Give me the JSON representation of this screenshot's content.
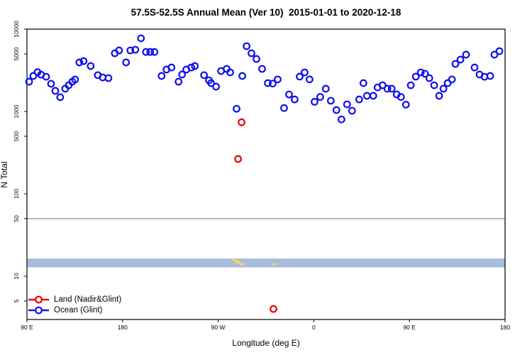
{
  "title": "57.5S-52.5S Annual Mean (Ver 10)  2015-01-01 to 2020-12-18",
  "axes": {
    "x_label": "Longitude (deg E)",
    "y_label": "N Total",
    "x_ticks": [
      {
        "pos": 0,
        "label": "90 E"
      },
      {
        "pos": 90,
        "label": "180"
      },
      {
        "pos": 180,
        "label": "90 W"
      },
      {
        "pos": 270,
        "label": "0"
      },
      {
        "pos": 360,
        "label": "90 E"
      },
      {
        "pos": 450,
        "label": "180"
      }
    ],
    "y_ticks": [
      {
        "value": 10000,
        "label": "10000"
      },
      {
        "value": 5000,
        "label": "5000"
      },
      {
        "value": 1000,
        "label": "1000"
      },
      {
        "value": 500,
        "label": "500"
      },
      {
        "value": 100,
        "label": "100"
      },
      {
        "value": 50,
        "label": "50"
      },
      {
        "value": 10,
        "label": "10"
      },
      {
        "value": 5,
        "label": "5"
      }
    ]
  },
  "legend": {
    "items": [
      {
        "label": "Land (Nadir&Glint)",
        "color": "#ee0000"
      },
      {
        "label": "Ocean (Glint)",
        "color": "#1010ee"
      }
    ]
  },
  "chart_data": {
    "type": "scatter",
    "title": "57.5S-52.5S Annual Mean (Ver 10)  2015-01-01 to 2020-12-18",
    "xlabel": "Longitude (deg E)",
    "ylabel": "N Total",
    "x_unit": "degrees eastward along axis starting at 90 E (axis runs 90E > 180 > 90W > 0 > 90E > 180, 450 deg total)",
    "y_scale": "log10",
    "xlim": [
      0,
      450
    ],
    "ylim": [
      3,
      10000
    ],
    "grid": false,
    "legend_position": "bottom-left",
    "marker": "open-circle",
    "series": [
      {
        "name": "Land (Nadir&Glint)",
        "color": "#ee0000",
        "points": [
          [
            198.7,
            265
          ],
          [
            202,
            740
          ],
          [
            232,
            4
          ]
        ]
      },
      {
        "name": "Ocean (Glint)",
        "color": "#1010ee",
        "points": [
          [
            2,
            2300
          ],
          [
            6,
            2700
          ],
          [
            10,
            3000
          ],
          [
            13.3,
            2800
          ],
          [
            18,
            2640
          ],
          [
            22.7,
            2170
          ],
          [
            26.7,
            1780
          ],
          [
            31.3,
            1490
          ],
          [
            36,
            1890
          ],
          [
            39.3,
            2080
          ],
          [
            42.7,
            2300
          ],
          [
            45.3,
            2440
          ],
          [
            49.3,
            3940
          ],
          [
            53.3,
            4090
          ],
          [
            60,
            3560
          ],
          [
            66.7,
            2760
          ],
          [
            71.3,
            2590
          ],
          [
            76.7,
            2540
          ],
          [
            82.7,
            5090
          ],
          [
            86.7,
            5510
          ],
          [
            93.3,
            3940
          ],
          [
            97.3,
            5510
          ],
          [
            102,
            5620
          ],
          [
            107.3,
            7730
          ],
          [
            112,
            5280
          ],
          [
            116,
            5280
          ],
          [
            120,
            5280
          ],
          [
            126.7,
            2700
          ],
          [
            131.3,
            3230
          ],
          [
            136,
            3420
          ],
          [
            142.7,
            2300
          ],
          [
            146,
            2810
          ],
          [
            150,
            3230
          ],
          [
            154.7,
            3420
          ],
          [
            158,
            3560
          ],
          [
            166.7,
            2760
          ],
          [
            171.3,
            2390
          ],
          [
            173.3,
            2210
          ],
          [
            178,
            2000
          ],
          [
            182.7,
            3100
          ],
          [
            188,
            3290
          ],
          [
            191.3,
            2980
          ],
          [
            197.3,
            1080
          ],
          [
            202.7,
            2700
          ],
          [
            206.7,
            6210
          ],
          [
            211.3,
            5090
          ],
          [
            216,
            4340
          ],
          [
            221.3,
            3290
          ],
          [
            226.7,
            2210
          ],
          [
            231.3,
            2180
          ],
          [
            236,
            2450
          ],
          [
            242,
            1100
          ],
          [
            246.7,
            1610
          ],
          [
            252,
            1400
          ],
          [
            256.7,
            2650
          ],
          [
            261.3,
            2980
          ],
          [
            266,
            2450
          ],
          [
            270.7,
            1310
          ],
          [
            276,
            1500
          ],
          [
            281.3,
            1890
          ],
          [
            286,
            1350
          ],
          [
            291.3,
            1040
          ],
          [
            296,
            800
          ],
          [
            301.3,
            1220
          ],
          [
            306,
            1020
          ],
          [
            312.7,
            1400
          ],
          [
            316.7,
            2210
          ],
          [
            320,
            1550
          ],
          [
            326,
            1550
          ],
          [
            330,
            1960
          ],
          [
            334.7,
            2080
          ],
          [
            339.3,
            1890
          ],
          [
            343.3,
            1890
          ],
          [
            348,
            1610
          ],
          [
            352,
            1500
          ],
          [
            356.7,
            1210
          ],
          [
            361.3,
            2080
          ],
          [
            366,
            2650
          ],
          [
            370.7,
            2980
          ],
          [
            374.7,
            2870
          ],
          [
            378.7,
            2540
          ],
          [
            383.3,
            2080
          ],
          [
            388,
            1550
          ],
          [
            392,
            1890
          ],
          [
            396,
            2210
          ],
          [
            400,
            2450
          ],
          [
            403.3,
            3780
          ],
          [
            408,
            4260
          ],
          [
            413.3,
            4900
          ],
          [
            421.3,
            3420
          ],
          [
            426,
            2810
          ],
          [
            430.7,
            2640
          ],
          [
            436,
            2700
          ],
          [
            440,
            4900
          ],
          [
            444.7,
            5400
          ]
        ]
      }
    ],
    "reference_line": {
      "value": 50,
      "color": "#a8a8a8"
    },
    "band": {
      "n_min": 12.8,
      "n_max": 16.4,
      "color": "#a8bddd"
    },
    "yellow_marks": {
      "color": "#f4d36b",
      "points": [
        [
          194.5,
          15.9
        ],
        [
          195.8,
          15.4
        ],
        [
          197.2,
          14.8
        ],
        [
          198.6,
          15.1
        ],
        [
          200,
          14.4
        ],
        [
          201.4,
          14.1
        ],
        [
          202.8,
          13.9
        ],
        [
          233,
          14.0
        ]
      ]
    }
  }
}
